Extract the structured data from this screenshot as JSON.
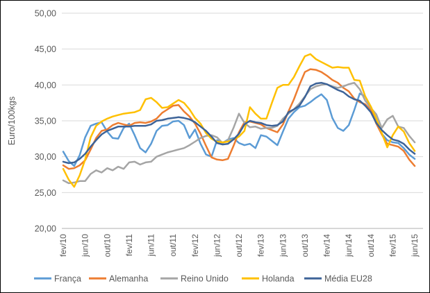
{
  "figure": {
    "background": "#FFFFFF",
    "border_color": "#000000",
    "text_color": "#595959",
    "gridline_color": "#D9D9D9",
    "axis_line_color": "#BFBFBF"
  },
  "chart_data": {
    "type": "line",
    "title": "",
    "xlabel": "",
    "ylabel": "Euro/100kgs",
    "ylim": [
      20,
      50
    ],
    "grid": true,
    "legend_position": "bottom",
    "y_ticks": [
      {
        "value": 50,
        "label": "50,00"
      },
      {
        "value": 45,
        "label": "45,00"
      },
      {
        "value": 40,
        "label": "40,00"
      },
      {
        "value": 35,
        "label": "35,00"
      },
      {
        "value": 30,
        "label": "30,00"
      },
      {
        "value": 25,
        "label": "25,00"
      },
      {
        "value": 20,
        "label": "20,00"
      }
    ],
    "x_tick_step": 4,
    "x": [
      "fev/10",
      "mar/10",
      "abr/10",
      "mai/10",
      "jun/10",
      "jul/10",
      "ago/10",
      "set/10",
      "out/10",
      "nov/10",
      "dez/10",
      "jan/11",
      "fev/11",
      "mar/11",
      "abr/11",
      "mai/11",
      "jun/11",
      "jul/11",
      "ago/11",
      "set/11",
      "out/11",
      "nov/11",
      "dez/11",
      "jan/12",
      "fev/12",
      "mar/12",
      "abr/12",
      "mai/12",
      "jun/12",
      "jul/12",
      "ago/12",
      "set/12",
      "out/12",
      "nov/12",
      "dez/12",
      "jan/13",
      "fev/13",
      "mar/13",
      "abr/13",
      "mai/13",
      "jun/13",
      "jul/13",
      "ago/13",
      "set/13",
      "out/13",
      "nov/13",
      "dez/13",
      "jan/14",
      "fev/14",
      "mar/14",
      "abr/14",
      "mai/14",
      "jun/14",
      "jul/14",
      "ago/14",
      "set/14",
      "out/14",
      "nov/14",
      "dez/14",
      "jan/15",
      "fev/15",
      "mar/15",
      "abr/15",
      "mai/15",
      "jun/15"
    ],
    "series": [
      {
        "name": "França",
        "color": "#5B9BD5",
        "values": [
          30.7,
          29.4,
          28.7,
          30.2,
          32.7,
          34.3,
          34.6,
          34.8,
          33.5,
          32.6,
          32.5,
          34.0,
          34.6,
          33.0,
          31.2,
          30.6,
          31.8,
          33.6,
          34.3,
          34.4,
          34.9,
          35.0,
          34.4,
          32.6,
          33.8,
          31.8,
          30.3,
          30.0,
          32.3,
          31.9,
          32.4,
          32.6,
          31.9,
          31.6,
          31.8,
          31.2,
          33.0,
          32.8,
          32.2,
          31.6,
          33.5,
          35.3,
          36.2,
          36.9,
          37.1,
          37.6,
          38.2,
          38.7,
          37.9,
          35.4,
          34.0,
          33.6,
          34.4,
          36.5,
          38.8,
          38.4,
          36.9,
          34.7,
          33.2,
          32.3,
          32.0,
          31.9,
          31.2,
          30.3,
          29.7
        ]
      },
      {
        "name": "Alemanha",
        "color": "#ED7D31",
        "values": [
          28.8,
          28.3,
          28.4,
          28.8,
          29.5,
          31.0,
          32.6,
          33.6,
          33.8,
          34.4,
          34.7,
          34.5,
          34.3,
          34.7,
          34.8,
          34.7,
          34.9,
          35.3,
          36.1,
          36.6,
          37.1,
          37.2,
          36.3,
          35.6,
          34.6,
          33.2,
          31.5,
          29.9,
          29.6,
          29.5,
          29.7,
          31.5,
          33.4,
          34.8,
          34.9,
          34.7,
          34.5,
          34.0,
          33.7,
          33.4,
          34.5,
          36.3,
          38.0,
          40.0,
          41.8,
          42.2,
          42.1,
          41.8,
          41.3,
          40.7,
          40.3,
          39.6,
          39.1,
          38.1,
          37.6,
          37.3,
          36.5,
          34.6,
          33.1,
          31.8,
          31.6,
          31.4,
          30.8,
          29.6,
          28.7
        ]
      },
      {
        "name": "Reino Unido",
        "color": "#A5A5A5",
        "values": [
          26.7,
          26.3,
          26.4,
          26.6,
          26.6,
          27.6,
          28.1,
          27.8,
          28.4,
          28.1,
          28.6,
          28.3,
          29.2,
          29.3,
          28.9,
          29.2,
          29.3,
          30.0,
          30.3,
          30.6,
          30.8,
          31.0,
          31.2,
          31.6,
          32.1,
          32.6,
          32.9,
          33.0,
          32.7,
          31.9,
          32.3,
          34.0,
          36.0,
          34.7,
          34.1,
          34.2,
          33.9,
          34.0,
          34.0,
          34.3,
          35.3,
          36.0,
          36.6,
          37.4,
          38.4,
          39.4,
          39.8,
          40.0,
          40.1,
          39.8,
          39.6,
          39.8,
          40.1,
          40.3,
          39.4,
          37.8,
          36.8,
          35.9,
          34.0,
          35.2,
          35.7,
          34.2,
          34.0,
          32.9,
          32.0
        ]
      },
      {
        "name": "Holanda",
        "color": "#FFC000",
        "values": [
          28.3,
          26.8,
          25.8,
          27.4,
          29.6,
          32.7,
          34.3,
          34.9,
          35.3,
          35.6,
          35.8,
          36.0,
          36.1,
          36.2,
          36.5,
          38.0,
          38.2,
          37.6,
          36.8,
          36.9,
          37.4,
          37.9,
          37.5,
          36.6,
          35.4,
          34.6,
          33.3,
          32.5,
          32.1,
          32.0,
          32.1,
          32.4,
          32.8,
          33.6,
          36.9,
          36.0,
          35.3,
          35.3,
          37.5,
          39.6,
          40.0,
          40.0,
          41.1,
          42.6,
          44.0,
          44.3,
          43.6,
          43.2,
          42.8,
          42.4,
          42.5,
          42.4,
          42.4,
          40.7,
          40.6,
          38.4,
          37.0,
          35.3,
          33.3,
          31.3,
          33.0,
          34.2,
          33.5,
          31.9,
          30.8
        ]
      },
      {
        "name": "Média EU28",
        "color": "#3D6398",
        "values": [
          29.3,
          29.1,
          29.2,
          29.7,
          30.4,
          31.4,
          32.3,
          33.1,
          33.6,
          33.9,
          34.2,
          34.2,
          34.2,
          34.3,
          34.3,
          34.3,
          34.5,
          35.0,
          35.1,
          35.3,
          35.4,
          35.5,
          35.4,
          35.2,
          34.8,
          34.2,
          33.6,
          32.8,
          31.9,
          31.7,
          31.8,
          32.4,
          33.2,
          34.5,
          35.0,
          34.8,
          34.7,
          34.4,
          34.3,
          34.4,
          34.9,
          36.2,
          36.6,
          37.1,
          38.3,
          39.8,
          40.2,
          40.3,
          40.1,
          39.7,
          39.3,
          39.0,
          38.4,
          38.0,
          37.8,
          37.1,
          36.2,
          34.7,
          33.7,
          33.0,
          32.4,
          32.2,
          31.8,
          31.0,
          30.4
        ]
      }
    ]
  }
}
